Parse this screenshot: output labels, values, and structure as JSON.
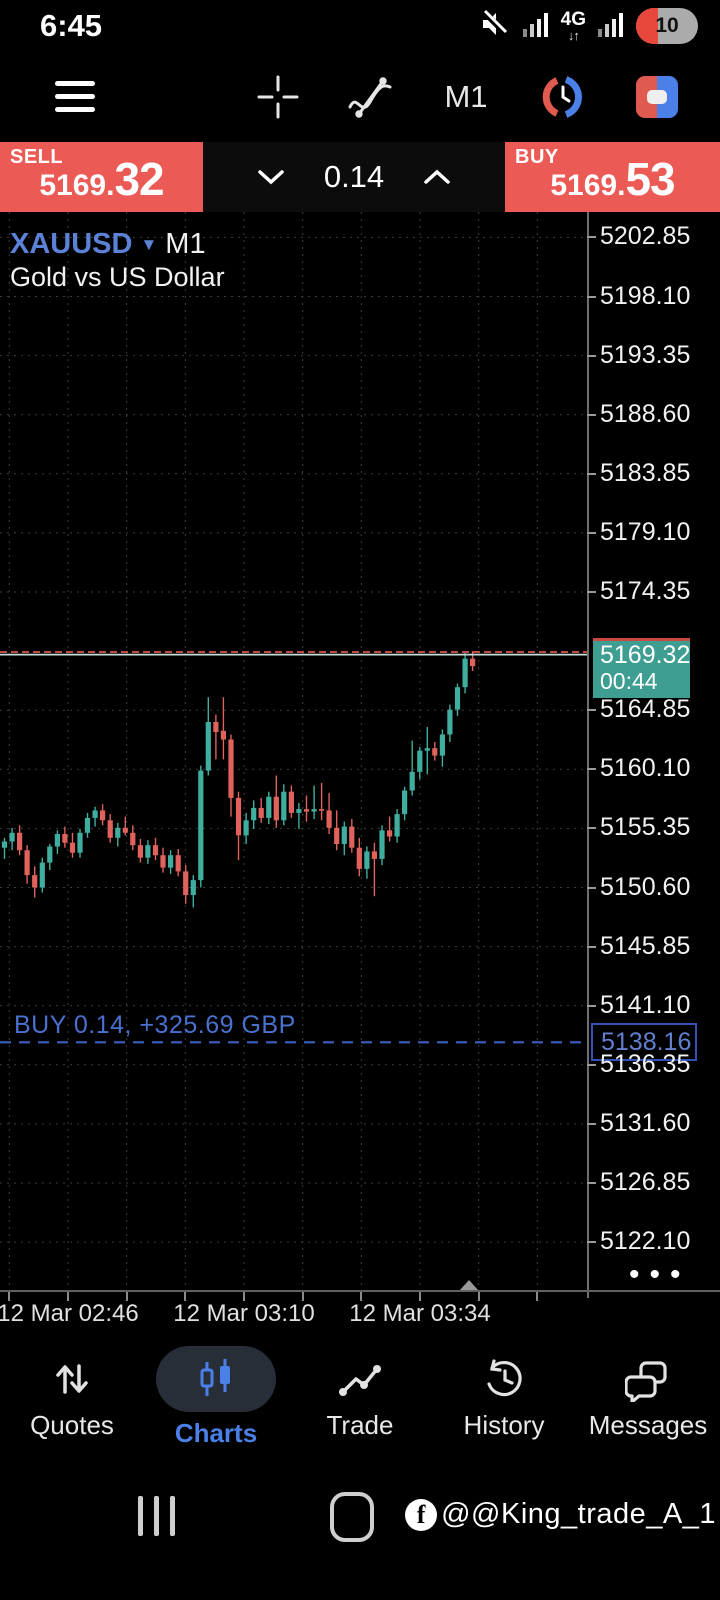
{
  "status_bar": {
    "time": "6:45",
    "network": "4G",
    "battery_percent": "10"
  },
  "toolbar": {
    "timeframe": "M1"
  },
  "trade_panel": {
    "sell_label": "SELL",
    "sell_price_small": "5169.",
    "sell_price_big": "32",
    "volume": "0.14",
    "buy_label": "BUY",
    "buy_price_small": "5169.",
    "buy_price_big": "53"
  },
  "chart": {
    "symbol": "XAUUSD",
    "timeframe": "M1",
    "description": "Gold vs US Dollar",
    "position_text": "BUY 0.14,  +325.69 GBP",
    "bid_badge_price": "5169.32",
    "bid_badge_countdown": "00:44",
    "position_badge": "5138.16",
    "overflow_dots": "•••"
  },
  "chart_data": {
    "type": "candlestick",
    "title": "XAUUSD M1 — Gold vs US Dollar",
    "bid": 5169.32,
    "ask": 5169.53,
    "position_price": 5138.16,
    "price_axis_ticks": [
      5202.85,
      5198.1,
      5193.35,
      5188.6,
      5183.85,
      5179.1,
      5174.35,
      5164.85,
      5160.1,
      5155.35,
      5150.6,
      5145.85,
      5141.1,
      5136.35,
      5131.6,
      5126.85,
      5122.1
    ],
    "time_labels": [
      "12 Mar 02:46",
      "12 Mar 03:10",
      "12 Mar 03:34"
    ],
    "colors": {
      "up": "#3fae9f",
      "down": "#e0625c",
      "grid": "#3d3d3d",
      "ask_line": "#c04a45",
      "bid_line": "#c3ded9",
      "position_line": "#3d5fc4"
    },
    "candles": [
      [
        5153.8,
        5154.6,
        5152.9,
        5154.3
      ],
      [
        5154.3,
        5155.4,
        5153.6,
        5155.0
      ],
      [
        5155.0,
        5155.6,
        5153.2,
        5153.6
      ],
      [
        5153.6,
        5154.0,
        5150.9,
        5151.6
      ],
      [
        5151.6,
        5152.3,
        5149.8,
        5150.6
      ],
      [
        5150.6,
        5153.0,
        5150.2,
        5152.6
      ],
      [
        5152.6,
        5154.1,
        5152.0,
        5153.9
      ],
      [
        5153.9,
        5155.2,
        5153.3,
        5154.9
      ],
      [
        5154.9,
        5155.5,
        5153.8,
        5154.2
      ],
      [
        5154.2,
        5155.0,
        5153.0,
        5153.4
      ],
      [
        5153.4,
        5155.3,
        5153.0,
        5155.0
      ],
      [
        5155.0,
        5156.6,
        5154.6,
        5156.2
      ],
      [
        5156.2,
        5157.1,
        5155.5,
        5156.8
      ],
      [
        5156.8,
        5157.3,
        5155.6,
        5156.0
      ],
      [
        5156.0,
        5156.5,
        5154.2,
        5154.6
      ],
      [
        5154.6,
        5155.8,
        5153.9,
        5155.4
      ],
      [
        5155.4,
        5156.3,
        5154.8,
        5155.0
      ],
      [
        5155.0,
        5155.6,
        5153.6,
        5154.0
      ],
      [
        5154.0,
        5154.5,
        5152.6,
        5153.0
      ],
      [
        5153.0,
        5154.4,
        5152.5,
        5154.0
      ],
      [
        5154.0,
        5154.6,
        5152.8,
        5153.2
      ],
      [
        5153.2,
        5153.8,
        5151.8,
        5152.2
      ],
      [
        5152.2,
        5153.6,
        5151.7,
        5153.2
      ],
      [
        5153.2,
        5153.7,
        5151.5,
        5151.9
      ],
      [
        5151.9,
        5152.4,
        5149.3,
        5150.0
      ],
      [
        5150.0,
        5151.6,
        5149.0,
        5151.2
      ],
      [
        5151.2,
        5160.4,
        5150.6,
        5160.0
      ],
      [
        5160.0,
        5165.9,
        5159.6,
        5163.9
      ],
      [
        5163.9,
        5164.5,
        5160.9,
        5163.1
      ],
      [
        5163.2,
        5165.9,
        5160.9,
        5162.5
      ],
      [
        5162.5,
        5162.9,
        5156.3,
        5157.8
      ],
      [
        5157.8,
        5158.3,
        5152.8,
        5154.8
      ],
      [
        5154.8,
        5156.6,
        5154.1,
        5156.0
      ],
      [
        5156.0,
        5157.6,
        5155.3,
        5157.0
      ],
      [
        5157.0,
        5157.8,
        5155.8,
        5156.2
      ],
      [
        5156.2,
        5158.3,
        5155.7,
        5157.9
      ],
      [
        5157.9,
        5159.6,
        5155.4,
        5156.0
      ],
      [
        5156.0,
        5158.9,
        5155.6,
        5158.3
      ],
      [
        5158.3,
        5158.8,
        5156.2,
        5156.6
      ],
      [
        5156.6,
        5157.4,
        5155.3,
        5156.9
      ],
      [
        5156.9,
        5158.0,
        5155.9,
        5156.7
      ],
      [
        5156.7,
        5158.8,
        5156.1,
        5156.9
      ],
      [
        5156.9,
        5159.0,
        5156.0,
        5156.8
      ],
      [
        5156.8,
        5158.2,
        5154.9,
        5155.4
      ],
      [
        5155.4,
        5156.8,
        5153.6,
        5154.1
      ],
      [
        5154.1,
        5155.9,
        5153.2,
        5155.5
      ],
      [
        5155.5,
        5156.1,
        5153.4,
        5153.8
      ],
      [
        5153.8,
        5154.6,
        5151.5,
        5152.1
      ],
      [
        5152.1,
        5153.9,
        5151.3,
        5153.5
      ],
      [
        5153.5,
        5154.2,
        5149.9,
        5152.9
      ],
      [
        5152.9,
        5155.6,
        5152.4,
        5155.2
      ],
      [
        5155.2,
        5156.3,
        5154.3,
        5154.7
      ],
      [
        5154.7,
        5156.9,
        5154.2,
        5156.5
      ],
      [
        5156.5,
        5158.7,
        5156.0,
        5158.4
      ],
      [
        5158.4,
        5162.4,
        5158.0,
        5159.9
      ],
      [
        5159.9,
        5161.9,
        5159.3,
        5161.6
      ],
      [
        5161.6,
        5163.5,
        5159.7,
        5161.8
      ],
      [
        5161.8,
        5162.3,
        5160.8,
        5161.2
      ],
      [
        5161.2,
        5163.3,
        5160.3,
        5162.9
      ],
      [
        5162.9,
        5165.3,
        5162.3,
        5164.9
      ],
      [
        5164.9,
        5167.0,
        5164.4,
        5166.7
      ],
      [
        5166.7,
        5169.6,
        5166.2,
        5169.0
      ],
      [
        5169.0,
        5169.6,
        5168.0,
        5168.4
      ]
    ]
  },
  "bottom_nav": {
    "items": [
      {
        "label": "Quotes"
      },
      {
        "label": "Charts"
      },
      {
        "label": "Trade"
      },
      {
        "label": "History"
      },
      {
        "label": "Messages"
      }
    ],
    "active": "Charts"
  },
  "system_bar": {
    "watermark": "@@King_trade_A_1"
  }
}
